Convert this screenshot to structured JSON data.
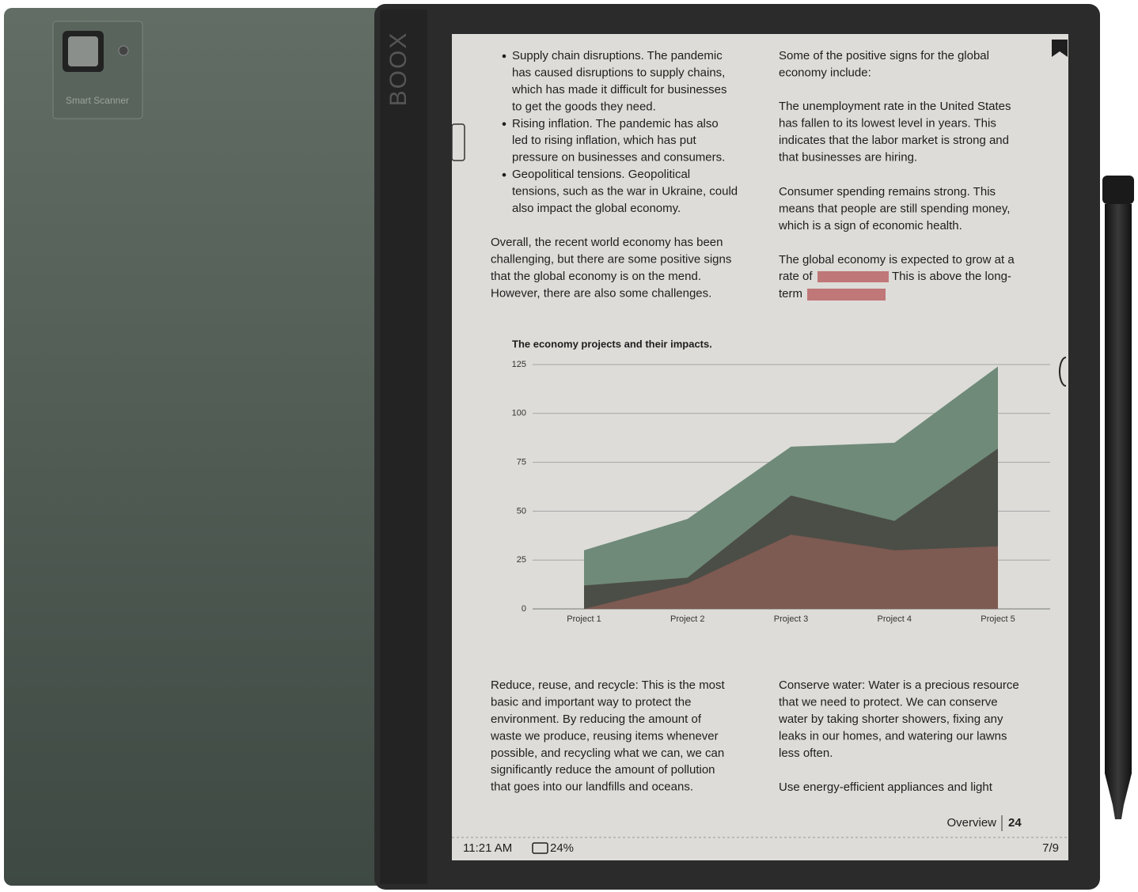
{
  "cover": {
    "camera_label": "Smart Scanner"
  },
  "device": {
    "brand": "BOOX"
  },
  "screen": {
    "left_column": {
      "bullets": [
        [
          "Supply chain disruptions. The pandemic",
          "has caused disruptions to supply chains,",
          "which has made it difficult for businesses",
          "to get the goods they need."
        ],
        [
          "Rising inflation. The pandemic has also",
          "led to rising inflation, which has put",
          "pressure on businesses and consumers."
        ],
        [
          "Geopolitical tensions. Geopolitical",
          "tensions, such as the war in Ukraine, could",
          "also impact the global economy."
        ]
      ],
      "paragraph": [
        "Overall, the recent world economy has been",
        "challenging, but there are some positive signs",
        "that the global economy is on the mend.",
        "However, there are also some challenges."
      ]
    },
    "right_column": {
      "paragraphs": [
        [
          "Some of the positive signs for the global",
          "economy include:"
        ],
        [
          "The unemployment rate in the United States",
          "has fallen to its lowest level in years. This",
          "indicates that the labor market is strong and",
          "that businesses are hiring."
        ],
        [
          "Consumer spending remains strong. This",
          "means that people are still spending money,",
          "which is a sign of economic health."
        ]
      ],
      "growth": [
        "The global economy is expected to grow at a",
        "rate of",
        "This is above the long-",
        "term"
      ]
    },
    "bottom_left": [
      "Reduce, reuse, and recycle: This is the most",
      "basic and important way to protect the",
      "environment. By reducing the amount of",
      "waste we produce, reusing items whenever",
      "possible, and recycling what we can, we can",
      "significantly reduce the amount of pollution",
      "that goes into our landfills and oceans."
    ],
    "bottom_right": {
      "paragraph": [
        "Conserve water: Water is a precious resource",
        "that we need to protect. We can conserve",
        "water by taking shorter showers, fixing any",
        "leaks in our homes, and watering our lawns",
        "less often."
      ],
      "next": [
        "Use energy-efficient appliances and light"
      ]
    },
    "footer": {
      "section": "Overview",
      "page": 24
    },
    "status_bar": {
      "time": "11:21 AM",
      "battery": "24%",
      "page_count": "7/9"
    }
  },
  "chart_data": {
    "type": "area",
    "title": "The economy projects and their impacts.",
    "categories": [
      "Project 1",
      "Project 2",
      "Project 3",
      "Project 4",
      "Project 5"
    ],
    "series": [
      {
        "color": "#6f8a78",
        "values": [
          30,
          46,
          83,
          85,
          124
        ]
      },
      {
        "color": "#4b4e46",
        "values": [
          12,
          16,
          58,
          45,
          82
        ]
      },
      {
        "color": "#7d5a52",
        "values": [
          0,
          13,
          38,
          30,
          32
        ]
      }
    ],
    "ylim": [
      0,
      125
    ],
    "yticks": [
      0,
      25,
      50,
      75,
      100,
      125
    ],
    "grid": true
  }
}
